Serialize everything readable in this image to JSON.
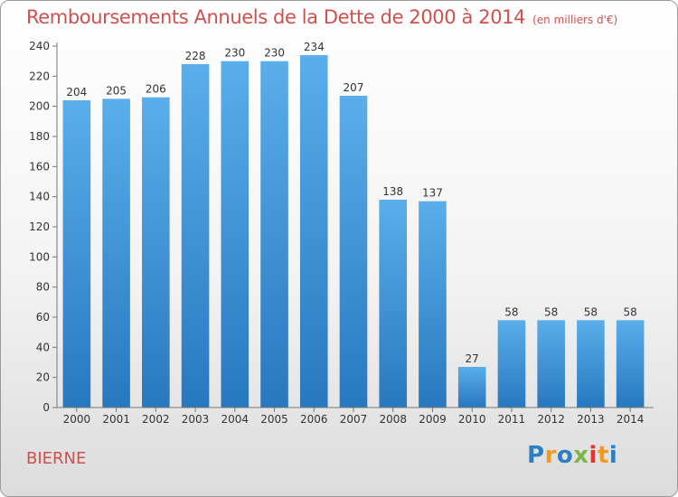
{
  "chart_data": {
    "type": "bar",
    "title": "Remboursements Annuels de la Dette de 2000 à 2014",
    "subtitle": "(en milliers d'€)",
    "categories": [
      "2000",
      "2001",
      "2002",
      "2003",
      "2004",
      "2005",
      "2006",
      "2007",
      "2008",
      "2009",
      "2010",
      "2011",
      "2012",
      "2013",
      "2014"
    ],
    "values": [
      204,
      205,
      206,
      228,
      230,
      230,
      234,
      207,
      138,
      137,
      27,
      58,
      58,
      58,
      58
    ],
    "ylim": [
      0,
      240
    ],
    "yticks": [
      0,
      20,
      40,
      60,
      80,
      100,
      120,
      140,
      160,
      180,
      200,
      220,
      240
    ],
    "grid": false,
    "bar_color_top": "#5aaeea",
    "bar_color_bottom": "#2878bf"
  },
  "footer": {
    "commune": "BIERNE",
    "logo_letters": [
      "P",
      "r",
      "o",
      "x",
      "i",
      "t",
      "i"
    ]
  },
  "colors": {
    "title": "#d0504d"
  }
}
